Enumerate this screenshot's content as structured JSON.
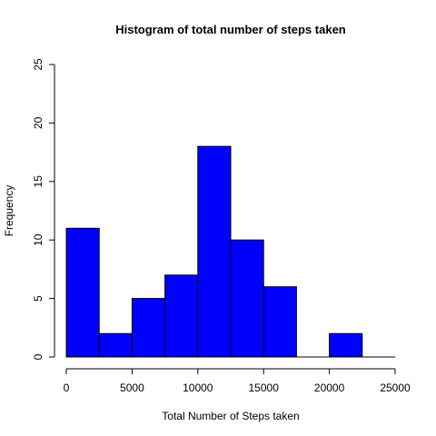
{
  "chart_data": {
    "type": "bar",
    "title": "Histogram of total number of steps taken",
    "xlabel": "Total Number of Steps taken",
    "ylabel": "Frequency",
    "bin_edges": [
      0,
      2500,
      5000,
      7500,
      10000,
      12500,
      15000,
      17500,
      20000,
      22500,
      25000
    ],
    "values": [
      11,
      2,
      5,
      7,
      18,
      10,
      6,
      0,
      2,
      0
    ],
    "xlim": [
      0,
      25000
    ],
    "ylim": [
      0,
      25
    ],
    "x_ticks": [
      0,
      5000,
      10000,
      15000,
      20000,
      25000
    ],
    "y_ticks": [
      0,
      5,
      10,
      15,
      20,
      25
    ],
    "bar_color": "#0000ff",
    "grid": false
  }
}
